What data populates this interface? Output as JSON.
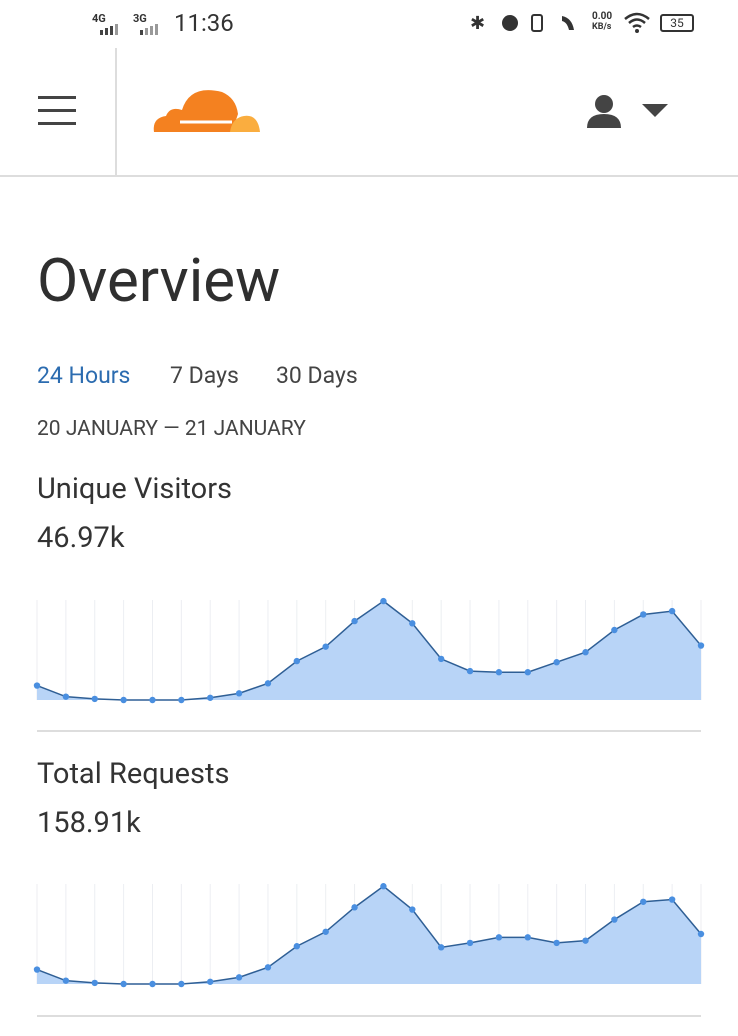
{
  "status_bar": {
    "network_1": "4G",
    "network_2": "3G",
    "time": "11:36",
    "speed": "0.00",
    "speed_unit": "KB/s",
    "battery": "35"
  },
  "page": {
    "title": "Overview",
    "tabs": [
      "24 Hours",
      "7 Days",
      "30 Days"
    ],
    "date_range": "20 JANUARY — 21 JANUARY"
  },
  "chart_data": [
    {
      "type": "area",
      "title": "Unique Visitors",
      "total": "46.97k",
      "color": "#4a8fe0",
      "fill": "#b8d4f7",
      "values": [
        1060,
        860,
        820,
        800,
        800,
        800,
        840,
        920,
        1100,
        1500,
        1760,
        2220,
        2580,
        2180,
        1540,
        1320,
        1300,
        1300,
        1480,
        1660,
        2060,
        2340,
        2400,
        1780
      ],
      "ylim": [
        800,
        2600
      ]
    },
    {
      "type": "area",
      "title": "Total Requests",
      "total": "158.91k",
      "color": "#4a8fe0",
      "fill": "#b8d4f7",
      "values": [
        3910,
        3210,
        3070,
        3000,
        3000,
        3000,
        3140,
        3420,
        4050,
        5380,
        6290,
        7830,
        9160,
        7690,
        5310,
        5590,
        5940,
        5940,
        5590,
        5730,
        7060,
        8180,
        8320,
        6150
      ],
      "ylim": [
        3000,
        9300
      ]
    }
  ]
}
